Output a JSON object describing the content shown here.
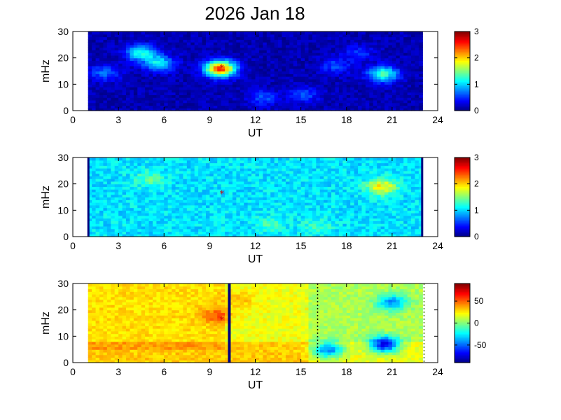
{
  "title": "2026 Jan 18",
  "colors": {
    "field_background": "#00007f",
    "marker": "#d40000",
    "axis": "#000000",
    "background": "#ffffff"
  },
  "chart_data": [
    {
      "type": "heatmap",
      "name": "panel-1",
      "xlabel": "UT",
      "ylabel": "mHz",
      "xlim": [
        0,
        24
      ],
      "ylim": [
        0,
        30
      ],
      "xticks": [
        "0",
        "3",
        "6",
        "9",
        "12",
        "15",
        "18",
        "21",
        "24"
      ],
      "yticks": [
        "0",
        "10",
        "20",
        "30"
      ],
      "data_x_range": [
        1,
        23
      ],
      "colorbar": {
        "range": [
          0,
          3
        ],
        "ticks": [
          "0",
          "1",
          "2",
          "3"
        ]
      },
      "marker": {
        "x": 9.8,
        "y": 16
      },
      "features": [
        {
          "x": 9.7,
          "y": 16,
          "value": 2.5
        },
        {
          "x": 4.5,
          "y": 22,
          "value": 1.2
        },
        {
          "x": 5.7,
          "y": 18,
          "value": 1.1
        },
        {
          "x": 20.4,
          "y": 14,
          "value": 1.3
        },
        {
          "x": 2.1,
          "y": 14.5,
          "value": 0.7
        },
        {
          "x": 12.5,
          "y": 5,
          "value": 0.6
        },
        {
          "x": 15.2,
          "y": 6,
          "value": 0.6
        },
        {
          "x": 17.3,
          "y": 17,
          "value": 0.6
        },
        {
          "x": 18.8,
          "y": 22,
          "value": 0.5
        }
      ]
    },
    {
      "type": "heatmap",
      "name": "panel-2",
      "xlabel": "UT",
      "ylabel": "mHz",
      "xlim": [
        0,
        24
      ],
      "ylim": [
        0,
        30
      ],
      "xticks": [
        "0",
        "3",
        "6",
        "9",
        "12",
        "15",
        "18",
        "21",
        "24"
      ],
      "yticks": [
        "0",
        "10",
        "20",
        "30"
      ],
      "data_x_range": [
        1,
        23
      ],
      "colorbar": {
        "range": [
          0,
          3
        ],
        "ticks": [
          "0",
          "1",
          "2",
          "3"
        ]
      },
      "marker": {
        "x": 9.8,
        "y": 16
      },
      "features": [
        {
          "x": 20.3,
          "y": 19,
          "value": 1.9
        },
        {
          "x": 5,
          "y": 22,
          "value": 1.4
        },
        {
          "x": 13,
          "y": 5,
          "value": 1.3
        },
        {
          "x": 16,
          "y": 4,
          "value": 1.3
        }
      ]
    },
    {
      "type": "heatmap",
      "name": "panel-3",
      "xlabel": "UT",
      "ylabel": "mHz",
      "xlim": [
        0,
        24
      ],
      "ylim": [
        0,
        30
      ],
      "xticks": [
        "0",
        "3",
        "6",
        "9",
        "12",
        "15",
        "18",
        "21",
        "24"
      ],
      "yticks": [
        "0",
        "10",
        "20",
        "30"
      ],
      "data_x_range": [
        1,
        23
      ],
      "colorbar": {
        "range": [
          -90,
          90
        ],
        "ticks": [
          "50",
          "0",
          "-50"
        ]
      },
      "marker": {
        "x": 9.8,
        "y": 16
      },
      "features": [
        {
          "x": 20.5,
          "y": 7,
          "value": -70
        },
        {
          "x": 16.8,
          "y": 5,
          "value": -45
        },
        {
          "x": 21,
          "y": 23,
          "value": -30
        },
        {
          "x": 9.5,
          "y": 18,
          "value": 45
        },
        {
          "x": 11,
          "y": 24,
          "value": 35
        }
      ]
    }
  ]
}
